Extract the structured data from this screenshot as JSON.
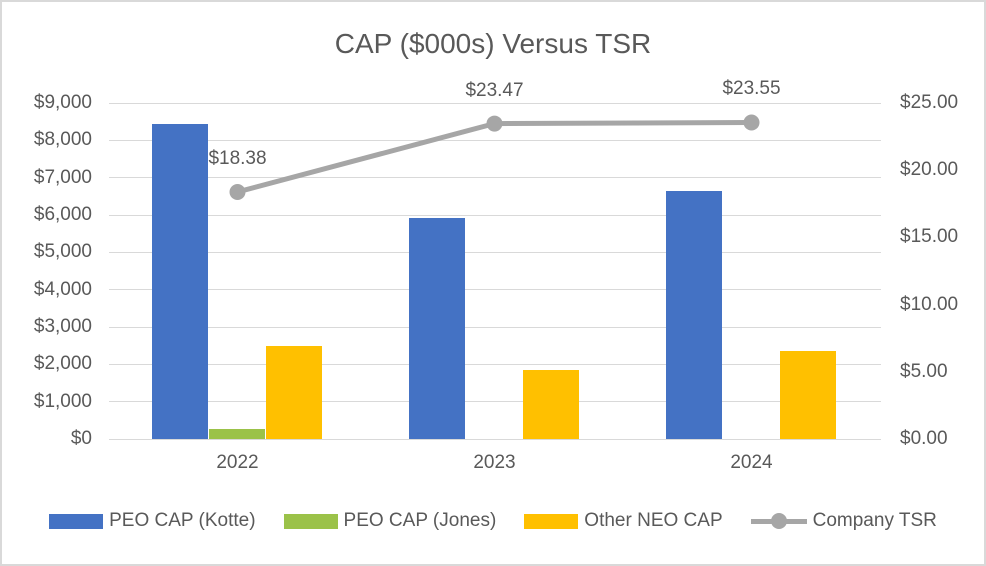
{
  "chart_data": {
    "type": "combo",
    "title": "CAP ($000s) Versus TSR",
    "categories": [
      "2022",
      "2023",
      "2024"
    ],
    "bar_series": [
      {
        "name": "PEO CAP (Kotte)",
        "color": "#4472C4",
        "values": [
          8440,
          5930,
          6640
        ]
      },
      {
        "name": "PEO CAP (Jones)",
        "color": "#9BC249",
        "values": [
          280,
          0,
          0
        ]
      },
      {
        "name": "Other NEO CAP",
        "color": "#FFC000",
        "values": [
          2500,
          1850,
          2370
        ]
      }
    ],
    "line_series": {
      "name": "Company TSR",
      "color": "#A6A6A6",
      "values": [
        18.38,
        23.47,
        23.55
      ],
      "point_labels": [
        "$18.38",
        "$23.47",
        "$23.55"
      ]
    },
    "left_axis": {
      "min": 0,
      "max": 9000,
      "step": 1000,
      "tick_labels": [
        "$0",
        "$1,000",
        "$2,000",
        "$3,000",
        "$4,000",
        "$5,000",
        "$6,000",
        "$7,000",
        "$8,000",
        "$9,000"
      ]
    },
    "right_axis": {
      "min": 0,
      "max": 25,
      "step": 5,
      "tick_labels": [
        "$0.00",
        "$5.00",
        "$10.00",
        "$15.00",
        "$20.00",
        "$25.00"
      ]
    },
    "grid": true,
    "legend_position": "bottom",
    "colors": {
      "text": "#595959",
      "gridline": "#D9D9D9",
      "border": "#D9D9D9"
    }
  }
}
